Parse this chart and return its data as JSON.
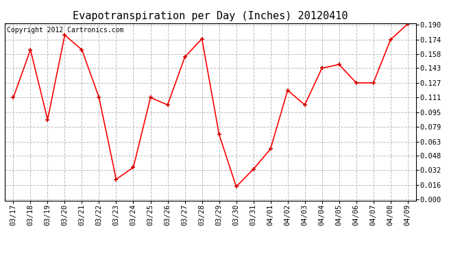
{
  "title": "Evapotranspiration per Day (Inches) 20120410",
  "copyright": "Copyright 2012 Cartronics.com",
  "dates": [
    "03/17",
    "03/18",
    "03/19",
    "03/20",
    "03/21",
    "03/22",
    "03/23",
    "03/24",
    "03/25",
    "03/26",
    "03/27",
    "03/28",
    "03/29",
    "03/30",
    "03/31",
    "04/01",
    "04/02",
    "04/03",
    "04/04",
    "04/05",
    "04/06",
    "04/07",
    "04/08",
    "04/09"
  ],
  "values": [
    0.111,
    0.163,
    0.087,
    0.179,
    0.163,
    0.111,
    0.022,
    0.035,
    0.111,
    0.103,
    0.155,
    0.175,
    0.071,
    0.014,
    0.033,
    0.055,
    0.119,
    0.103,
    0.143,
    0.147,
    0.127,
    0.127,
    0.174,
    0.191
  ],
  "line_color": "#ff0000",
  "marker": "+",
  "marker_color": "#cc0000",
  "ylim": [
    0.0,
    0.19
  ],
  "yticks": [
    0.0,
    0.016,
    0.032,
    0.048,
    0.063,
    0.079,
    0.095,
    0.111,
    0.127,
    0.143,
    0.158,
    0.174,
    0.19
  ],
  "background_color": "#ffffff",
  "plot_bg_color": "#ffffff",
  "grid_color": "#bbbbbb",
  "title_fontsize": 11,
  "tick_fontsize": 7.5,
  "copyright_fontsize": 7
}
